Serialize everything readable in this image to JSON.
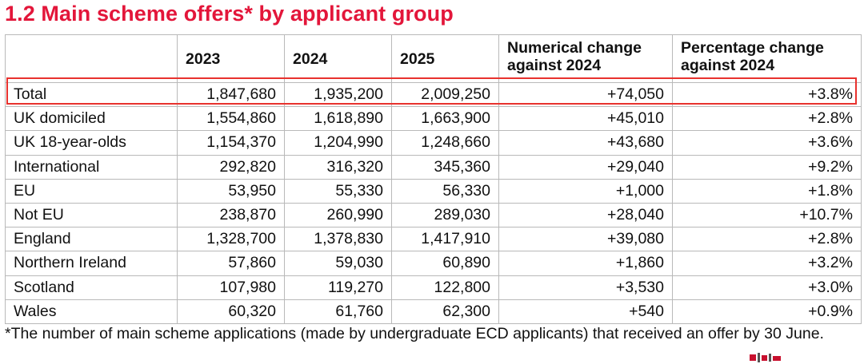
{
  "title": "1.2 Main scheme offers* by applicant group",
  "table": {
    "headers": [
      "",
      "2023",
      "2024",
      "2025",
      "Numerical change against 2024",
      "Percentage change against 2024"
    ],
    "rows": [
      [
        "Total",
        "1,847,680",
        "1,935,200",
        "2,009,250",
        "+74,050",
        "+3.8%"
      ],
      [
        "UK domiciled",
        "1,554,860",
        "1,618,890",
        "1,663,900",
        "+45,010",
        "+2.8%"
      ],
      [
        "UK 18-year-olds",
        "1,154,370",
        "1,204,990",
        "1,248,660",
        "+43,680",
        "+3.6%"
      ],
      [
        "International",
        "292,820",
        "316,320",
        "345,360",
        "+29,040",
        "+9.2%"
      ],
      [
        "EU",
        "53,950",
        "55,330",
        "56,330",
        "+1,000",
        "+1.8%"
      ],
      [
        "Not EU",
        "238,870",
        "260,990",
        "289,030",
        "+28,040",
        "+10.7%"
      ],
      [
        "England",
        "1,328,700",
        "1,378,830",
        "1,417,910",
        "+39,080",
        "+2.8%"
      ],
      [
        "Northern Ireland",
        "57,860",
        "59,030",
        "60,890",
        "+1,860",
        "+3.2%"
      ],
      [
        "Scotland",
        "107,980",
        "119,270",
        "122,800",
        "+3,530",
        "+3.0%"
      ],
      [
        "Wales",
        "60,320",
        "61,760",
        "62,300",
        "+540",
        "+0.9%"
      ]
    ]
  },
  "highlight_color": "#e8322e",
  "title_color": "#e3163a",
  "footnote": "*The number of main scheme applications (made by undergraduate ECD applicants) that received an offer by 30 June."
}
